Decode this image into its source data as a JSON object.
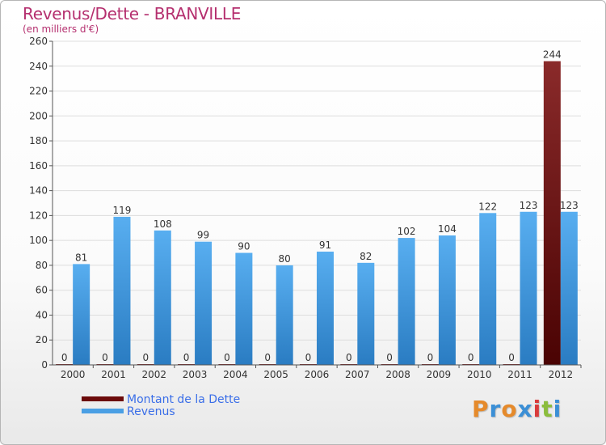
{
  "title": "Revenus/Dette - BRANVILLE",
  "subtitle": "(en milliers d'€)",
  "logo": {
    "text": "Proxiti",
    "colors": [
      "#e58a2b",
      "#3b8fd6",
      "#e58a2b",
      "#3b8fd6",
      "#d93c3c",
      "#8bbd3c",
      "#3b8fd6"
    ]
  },
  "colors": {
    "dette": "#6b0a0a",
    "revenus": "#4a9fe4",
    "title": "#b5306f"
  },
  "chart_data": {
    "type": "bar",
    "title": "Revenus/Dette - BRANVILLE",
    "ylabel": "(en milliers d'€)",
    "xlabel": "",
    "categories": [
      "2000",
      "2001",
      "2002",
      "2003",
      "2004",
      "2005",
      "2006",
      "2007",
      "2008",
      "2009",
      "2010",
      "2011",
      "2012"
    ],
    "series": [
      {
        "name": "Montant de la Dette",
        "values": [
          0,
          0,
          0,
          0,
          0,
          0,
          0,
          0,
          0,
          0,
          0,
          0,
          244
        ]
      },
      {
        "name": "Revenus",
        "values": [
          81,
          119,
          108,
          99,
          90,
          80,
          91,
          82,
          102,
          104,
          122,
          123,
          123
        ]
      }
    ],
    "ylim": [
      0,
      260
    ],
    "yticks": [
      0,
      20,
      40,
      60,
      80,
      100,
      120,
      140,
      160,
      180,
      200,
      220,
      240,
      260
    ],
    "grid": true,
    "legend": "bottom-left"
  }
}
